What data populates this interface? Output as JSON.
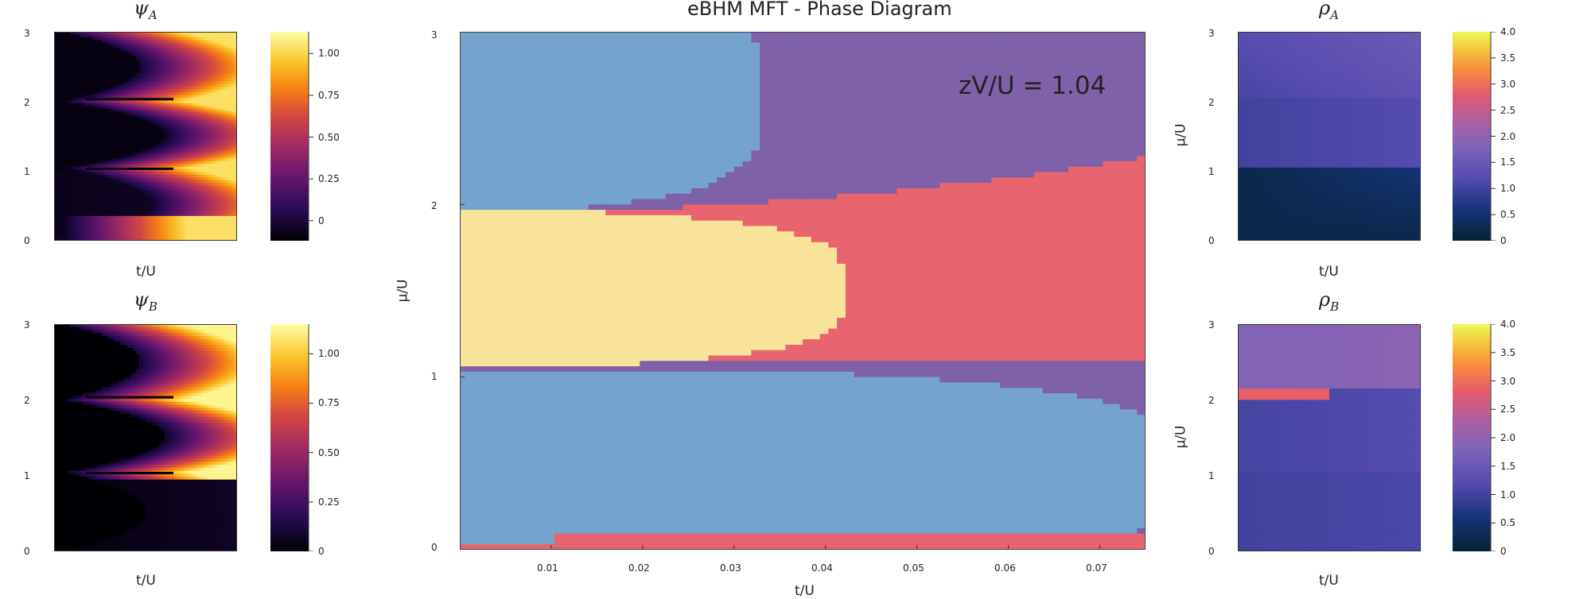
{
  "chart_data": [
    {
      "type": "heatmap",
      "panel": "psi_A",
      "title": "ψ",
      "title_sub": "A",
      "xlabel": "t/U",
      "ylabel": "",
      "y_ticks": [
        "0",
        "1",
        "2",
        "3"
      ],
      "ylim": [
        0,
        3
      ],
      "colormap": "inferno",
      "colorbar_ticks": [
        "0",
        "0.25",
        "0.50",
        "0.75",
        "1.00"
      ],
      "colorbar_range": [
        -0.12,
        1.13
      ]
    },
    {
      "type": "heatmap",
      "panel": "psi_B",
      "title": "ψ",
      "title_sub": "B",
      "xlabel": "t/U",
      "ylabel": "",
      "y_ticks": [
        "0",
        "1",
        "2",
        "3"
      ],
      "ylim": [
        0,
        3
      ],
      "colormap": "inferno",
      "colorbar_ticks": [
        "0",
        "0.25",
        "0.50",
        "0.75",
        "1.00"
      ],
      "colorbar_range": [
        0,
        1.15
      ]
    },
    {
      "type": "heatmap",
      "panel": "phase_diagram",
      "title": "eBHM MFT - Phase Diagram",
      "xlabel": "t/U",
      "ylabel": "μ/U",
      "x_ticks": [
        "0.01",
        "0.02",
        "0.03",
        "0.04",
        "0.05",
        "0.06",
        "0.07"
      ],
      "y_ticks": [
        "0",
        "1",
        "2",
        "3"
      ],
      "xlim": [
        0,
        0.075
      ],
      "ylim": [
        0,
        3
      ],
      "annotation": "zV/U = 1.04",
      "phase_colors": {
        "blue": "#74a4cd",
        "purple": "#7f61a9",
        "red": "#e8646e",
        "yellow": "#f9e39a"
      },
      "phases": [
        {
          "color": "blue",
          "boundary": "lower lobe below μ/U≈1.05 closing near t/U≈0.075, upper lobe μ/U≈1.95–3 closing near t/U≈0.032"
        },
        {
          "color": "purple",
          "boundary": "bands between the blue lobes and the red region"
        },
        {
          "color": "red",
          "boundary": "central region μ/U≈1.1–2.3 extending to right edge, thin strip near μ/U≈0"
        },
        {
          "color": "yellow",
          "boundary": "lobe μ/U≈1.05–1.95 closing near t/U≈0.042"
        }
      ]
    },
    {
      "type": "heatmap",
      "panel": "rho_A",
      "title": "ρ",
      "title_sub": "A",
      "xlabel": "t/U",
      "ylabel": "μ/U",
      "y_ticks": [
        "0",
        "1",
        "2",
        "3"
      ],
      "ylim": [
        0,
        3
      ],
      "colormap": "thermal",
      "colorbar_ticks": [
        "0",
        "0.5",
        "1.0",
        "1.5",
        "2.0",
        "2.5",
        "3.0",
        "3.5",
        "4.0"
      ],
      "colorbar_range": [
        0,
        4
      ]
    },
    {
      "type": "heatmap",
      "panel": "rho_B",
      "title": "ρ",
      "title_sub": "B",
      "xlabel": "t/U",
      "ylabel": "μ/U",
      "y_ticks": [
        "0",
        "1",
        "2",
        "3"
      ],
      "ylim": [
        0,
        3
      ],
      "colormap": "thermal",
      "colorbar_ticks": [
        "0",
        "0.5",
        "1.0",
        "1.5",
        "2.0",
        "2.5",
        "3.0",
        "3.5",
        "4.0"
      ],
      "colorbar_range": [
        0,
        4
      ]
    }
  ]
}
